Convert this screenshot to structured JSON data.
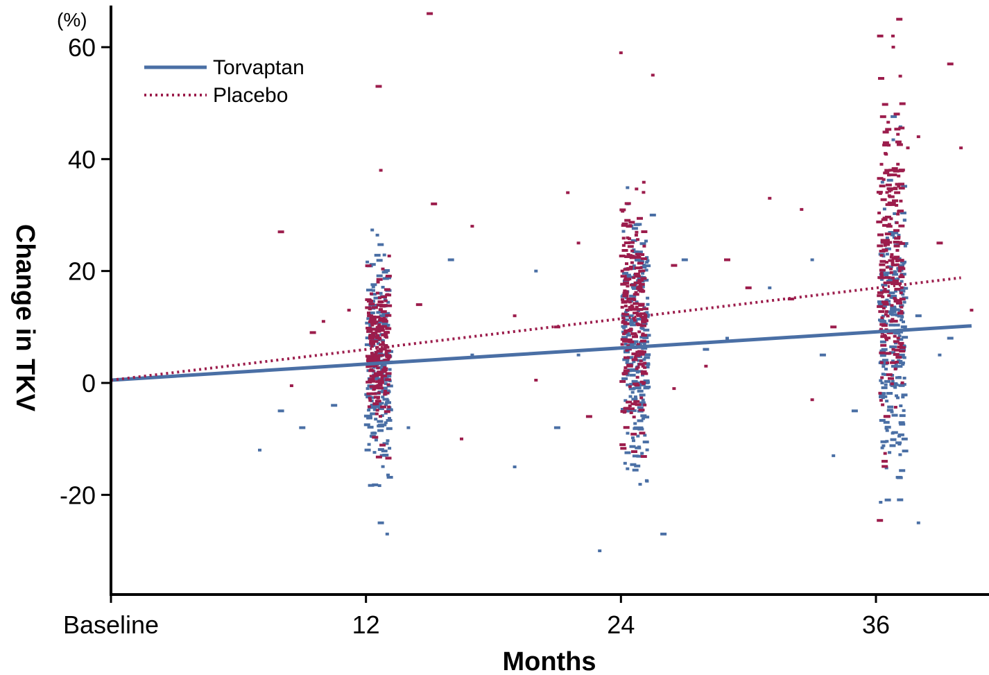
{
  "chart_data": {
    "type": "scatter",
    "unit_label": "(%)",
    "xlabel": "Months",
    "ylabel": "Change in TKV",
    "xlim": [
      0,
      40.5
    ],
    "ylim": [
      -38,
      67
    ],
    "x_ticks": [
      {
        "value": 0,
        "label": "Baseline"
      },
      {
        "value": 12,
        "label": "12"
      },
      {
        "value": 24,
        "label": "24"
      },
      {
        "value": 36,
        "label": "36"
      }
    ],
    "y_ticks": [
      {
        "value": 60,
        "label": "60"
      },
      {
        "value": 40,
        "label": "40"
      },
      {
        "value": 20,
        "label": "20"
      },
      {
        "value": 0,
        "label": "0"
      },
      {
        "value": -20,
        "label": "-20"
      }
    ],
    "legend_position": "top-left",
    "series": [
      {
        "name": "Torvaptan",
        "color": "#4a6fa5",
        "line_style": "solid",
        "trend": {
          "x": [
            0,
            40.5
          ],
          "y": [
            0.5,
            10.2
          ]
        },
        "clusters": [
          {
            "x_center": 12.6,
            "x_spread": 0.55,
            "y_mean": 3.5,
            "y_sd": 9,
            "count": 210
          },
          {
            "x_center": 24.7,
            "x_spread": 0.6,
            "y_mean": 5.5,
            "y_sd": 11,
            "count": 220
          },
          {
            "x_center": 36.8,
            "x_spread": 0.6,
            "y_mean": 8.5,
            "y_sd": 14,
            "count": 230
          }
        ],
        "points": [
          [
            7,
            -12
          ],
          [
            8,
            -5
          ],
          [
            9,
            -8
          ],
          [
            10.5,
            -4
          ],
          [
            14,
            -8
          ],
          [
            16,
            22
          ],
          [
            17,
            5
          ],
          [
            19,
            -15
          ],
          [
            20,
            20
          ],
          [
            21,
            -8
          ],
          [
            22,
            5
          ],
          [
            27,
            22
          ],
          [
            29,
            8
          ],
          [
            31,
            17
          ],
          [
            33,
            22
          ],
          [
            35,
            -5
          ],
          [
            33.5,
            5
          ],
          [
            39,
            5
          ],
          [
            34,
            -13
          ],
          [
            39.5,
            8
          ],
          [
            38,
            -25
          ],
          [
            25.5,
            30
          ],
          [
            26,
            -27
          ],
          [
            23,
            -30
          ],
          [
            13,
            -27
          ],
          [
            12.7,
            -25
          ],
          [
            38,
            12
          ],
          [
            28,
            6
          ]
        ]
      },
      {
        "name": "Placebo",
        "color": "#9c1d4c",
        "line_style": "dotted",
        "trend": {
          "x": [
            0,
            40
          ],
          "y": [
            0.5,
            18.8
          ]
        },
        "clusters": [
          {
            "x_center": 12.6,
            "x_spread": 0.5,
            "y_mean": 6,
            "y_sd": 7,
            "count": 200
          },
          {
            "x_center": 24.6,
            "x_spread": 0.55,
            "y_mean": 12,
            "y_sd": 10,
            "count": 210
          },
          {
            "x_center": 36.7,
            "x_spread": 0.55,
            "y_mean": 22,
            "y_sd": 14,
            "count": 220
          }
        ],
        "points": [
          [
            15,
            66
          ],
          [
            15.2,
            32
          ],
          [
            12.7,
            38
          ],
          [
            12.6,
            53
          ],
          [
            8,
            27
          ],
          [
            9.5,
            9
          ],
          [
            8.5,
            -0.5
          ],
          [
            17,
            28
          ],
          [
            16.5,
            -10
          ],
          [
            19,
            12
          ],
          [
            20,
            0.5
          ],
          [
            21,
            10
          ],
          [
            22.5,
            -6
          ],
          [
            22,
            25
          ],
          [
            24,
            59
          ],
          [
            25.5,
            55
          ],
          [
            26.5,
            21
          ],
          [
            26.5,
            -1
          ],
          [
            28,
            3
          ],
          [
            29,
            22
          ],
          [
            30,
            17
          ],
          [
            31,
            33
          ],
          [
            32,
            15
          ],
          [
            32.5,
            31
          ],
          [
            33,
            -3
          ],
          [
            40,
            42
          ],
          [
            39.5,
            57
          ],
          [
            37.5,
            42
          ],
          [
            39,
            25
          ],
          [
            40.5,
            13
          ],
          [
            36.2,
            62
          ],
          [
            36.8,
            62
          ],
          [
            37.1,
            65
          ],
          [
            38,
            44
          ],
          [
            34,
            10
          ],
          [
            14.5,
            14
          ],
          [
            11.2,
            13
          ],
          [
            10,
            11
          ],
          [
            21.5,
            34
          ]
        ]
      }
    ]
  }
}
